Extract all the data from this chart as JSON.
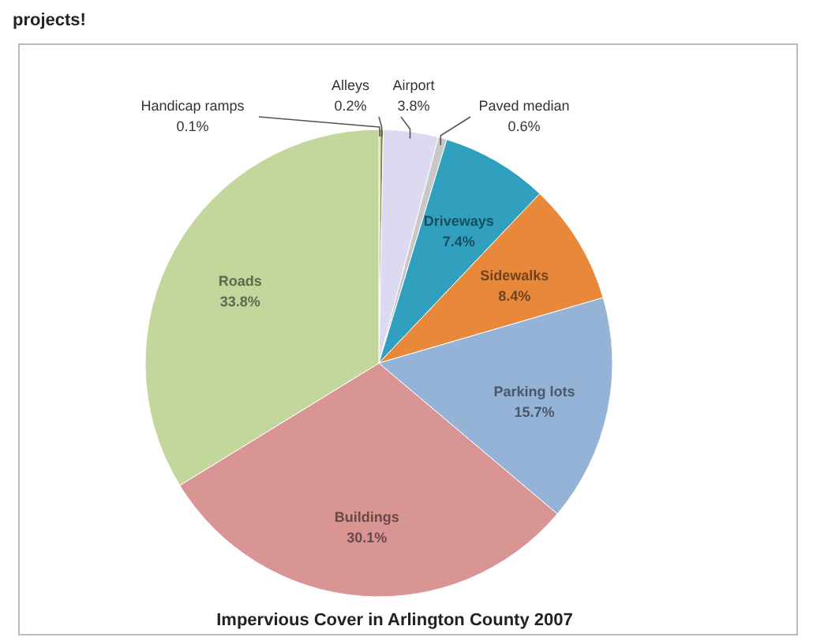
{
  "chart_data": {
    "type": "pie",
    "title": "Impervious Cover in Arlington County 2007",
    "annotations": [
      "projects!"
    ],
    "categories": [
      "Handicap ramps",
      "Alleys",
      "Airport",
      "Paved median",
      "Driveways",
      "Sidewalks",
      "Parking lots",
      "Buildings",
      "Roads"
    ],
    "values": [
      0.1,
      0.2,
      3.8,
      0.6,
      7.4,
      8.4,
      15.7,
      30.1,
      33.8
    ],
    "colors": [
      "#8c5a2b",
      "#76923c",
      "#dcdaf0",
      "#c8c8c8",
      "#31a0bf",
      "#e8883a",
      "#95b3d7",
      "#d99594",
      "#c3d69b"
    ],
    "value_labels": [
      "0.1%",
      "0.2%",
      "3.8%",
      "0.6%",
      "7.4%",
      "8.4%",
      "15.7%",
      "30.1%",
      "33.8%"
    ],
    "legend": false
  }
}
